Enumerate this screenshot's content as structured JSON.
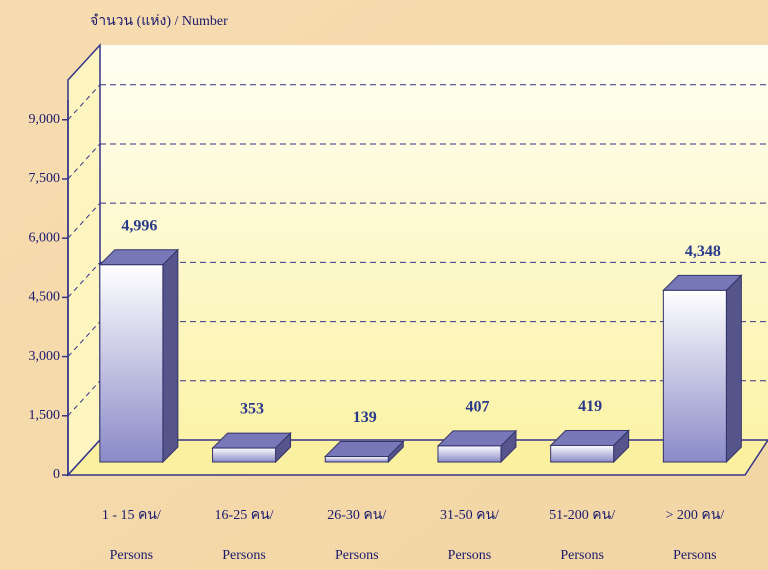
{
  "chart_data": {
    "type": "bar3d",
    "y_axis_label": "จำนวน (แห่ง) / Number",
    "categories": [
      [
        "1 - 15 คน/",
        "Persons"
      ],
      [
        "16-25 คน/",
        "Persons"
      ],
      [
        "26-30 คน/",
        "Persons"
      ],
      [
        "31-50 คน/",
        "Persons"
      ],
      [
        "51-200 คน/",
        "Persons"
      ],
      [
        "> 200 คน/",
        "Persons"
      ]
    ],
    "values": [
      4996,
      353,
      139,
      407,
      419,
      4348
    ],
    "value_labels": [
      "4,996",
      "353",
      "139",
      "407",
      "419",
      "4,348"
    ],
    "color": "#7070b8",
    "ylim": [
      0,
      9500
    ],
    "yticks": [
      0,
      {
        "value": 1500,
        "label": "1,500"
      },
      {
        "value": 3000,
        "label": "3,000"
      },
      {
        "value": 4500,
        "label": "4,500"
      },
      {
        "value": 6000,
        "label": "6,000"
      },
      {
        "value": 7500,
        "label": "7,500"
      },
      {
        "value": 9000,
        "label": "9,000"
      }
    ],
    "grid": true
  }
}
